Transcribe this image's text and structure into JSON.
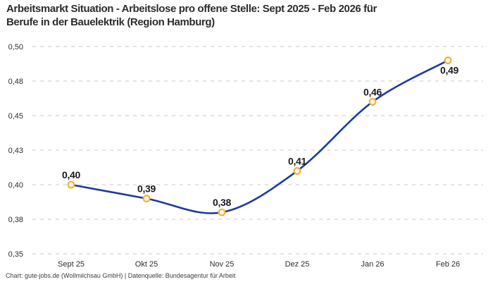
{
  "header": {
    "title_line1": "Arbeitsmarkt Situation - Arbeitslose pro offene Stelle: Sept 2025 - Feb 2026 für",
    "title_line2": "Berufe in der Bauelektrik (Region Hamburg)"
  },
  "footer": {
    "credit": "Chart: gute-jobs.de (Wollmilchsau GmbH) | Datenquelle: Bundesagentur für Arbeit"
  },
  "colors": {
    "background": "#ffffff",
    "title_text": "#2d2d2d",
    "axis_text": "#2e2e2e",
    "label_text": "#1a1a1a",
    "grid": "#c9c9c9",
    "line": "#1e3a9a",
    "marker_stroke": "#f4b432",
    "marker_fill": "#ffffff",
    "footer_text": "#3d3d3d"
  },
  "chart_data": {
    "type": "line",
    "title": "Arbeitsmarkt Situation - Arbeitslose pro offene Stelle: Sept 2025 - Feb 2026 für Berufe in der Bauelektrik (Region Hamburg)",
    "categories": [
      "Sept 25",
      "Okt 25",
      "Nov 25",
      "Dez 25",
      "Jan 26",
      "Feb 26"
    ],
    "values": [
      0.4,
      0.39,
      0.38,
      0.41,
      0.46,
      0.49
    ],
    "point_labels": [
      "0,40",
      "0,39",
      "0,38",
      "0,41",
      "0,46",
      "0,49"
    ],
    "label_positions": [
      "above",
      "above",
      "above",
      "above",
      "above",
      "below"
    ],
    "y_ticks": [
      0.5,
      0.475,
      0.45,
      0.425,
      0.4,
      0.375,
      0.35
    ],
    "y_tick_labels": [
      "0,50",
      "0,48",
      "0,45",
      "0,43",
      "0,40",
      "0,38",
      "0,35"
    ],
    "ylim": [
      0.35,
      0.5
    ],
    "xlabel": "",
    "ylabel": "",
    "grid": "dashed-horizontal",
    "legend": "none",
    "line_shape": "smooth"
  }
}
